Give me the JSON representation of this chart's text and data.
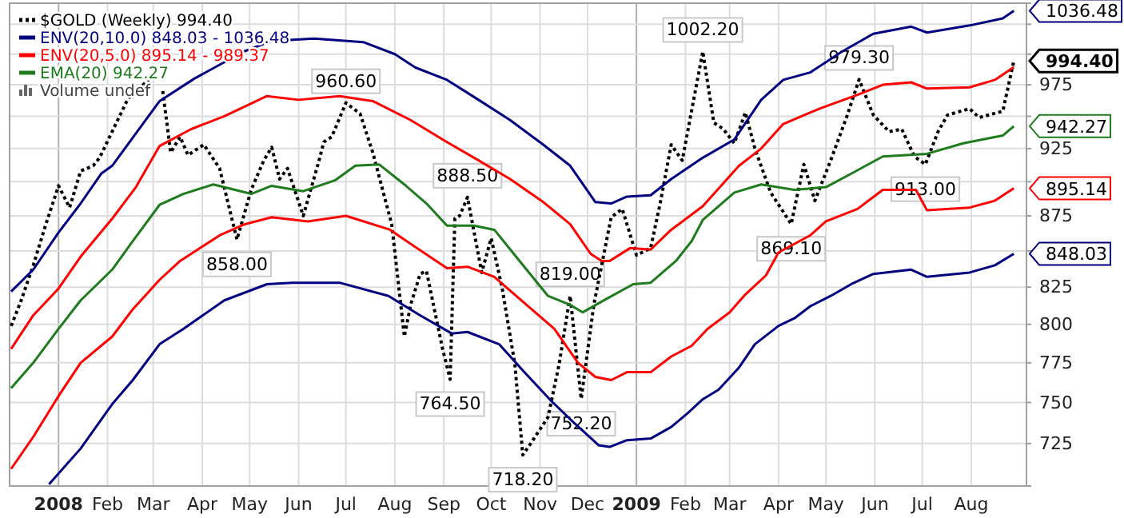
{
  "chart_data": {
    "type": "line",
    "legend": "top left",
    "grid": true,
    "log": true,
    "xlim": [
      "2007-12-01",
      "2009-09-05"
    ],
    "xticks": [
      {
        "value": "2008-01-01",
        "label": "2008"
      },
      {
        "value": "2008-02-01",
        "label": "Feb"
      },
      {
        "value": "2008-03-01",
        "label": "Mar"
      },
      {
        "value": "2008-04-01",
        "label": "Apr"
      },
      {
        "value": "2008-05-01",
        "label": "May"
      },
      {
        "value": "2008-06-01",
        "label": "Jun"
      },
      {
        "value": "2008-07-01",
        "label": "Jul"
      },
      {
        "value": "2008-08-01",
        "label": "Aug"
      },
      {
        "value": "2008-09-01",
        "label": "Sep"
      },
      {
        "value": "2008-10-01",
        "label": "Oct"
      },
      {
        "value": "2008-11-01",
        "label": "Nov"
      },
      {
        "value": "2008-12-01",
        "label": "Dec"
      },
      {
        "value": "2009-01-01",
        "label": "2009"
      },
      {
        "value": "2009-02-01",
        "label": "Feb"
      },
      {
        "value": "2009-03-01",
        "label": "Mar"
      },
      {
        "value": "2009-04-01",
        "label": "Apr"
      },
      {
        "value": "2009-05-01",
        "label": "May"
      },
      {
        "value": "2009-06-01",
        "label": "Jun"
      },
      {
        "value": "2009-07-01",
        "label": "Jul"
      },
      {
        "value": "2009-08-01",
        "label": "Aug"
      }
    ],
    "ylim": [
      700,
      1043
    ],
    "yticks": [
      725,
      750,
      775,
      800,
      825,
      {
        "value": 850,
        "label": null
      },
      875,
      {
        "value": 900,
        "label": null
      },
      925,
      {
        "value": 950,
        "label": null
      },
      975,
      {
        "value": 1000,
        "label": null
      },
      {
        "value": 1025,
        "label": null
      }
    ],
    "series": [
      {
        "name": "$GOLD (Weekly) 994.40",
        "color": "#000000",
        "line_style": "dotted",
        "x": [
          "2007-12-02",
          "2007-12-08",
          "2007-12-16",
          "2007-12-24",
          "2008-01-01",
          "2008-01-08",
          "2008-01-15",
          "2008-01-23",
          "2008-01-27",
          "2008-02-14",
          "2008-02-27",
          "2008-03-02",
          "2008-03-07",
          "2008-03-12",
          "2008-03-18",
          "2008-03-23",
          "2008-04-02",
          "2008-04-12",
          "2008-04-23",
          "2008-05-02",
          "2008-05-10",
          "2008-05-15",
          "2008-05-20",
          "2008-05-25",
          "2008-06-04",
          "2008-06-14",
          "2008-06-17",
          "2008-06-22",
          "2008-07-01",
          "2008-07-10",
          "2008-07-18",
          "2008-07-30",
          "2008-08-07",
          "2008-08-11",
          "2008-08-17",
          "2008-08-21",
          "2008-08-31",
          "2008-09-05",
          "2008-09-08",
          "2008-09-11",
          "2008-09-16",
          "2008-09-25",
          "2008-10-01",
          "2008-10-08",
          "2008-10-16",
          "2008-10-21",
          "2008-10-26",
          "2008-11-06",
          "2008-11-13",
          "2008-11-20",
          "2008-11-27",
          "2008-12-05",
          "2008-12-13",
          "2008-12-16",
          "2008-12-23",
          "2009-01-01",
          "2009-01-10",
          "2009-01-16",
          "2009-01-23",
          "2009-01-30",
          "2009-02-12",
          "2009-02-19",
          "2009-02-25",
          "2009-03-04",
          "2009-03-11",
          "2009-03-17",
          "2009-03-27",
          "2009-04-09",
          "2009-04-17",
          "2009-04-24",
          "2009-05-04",
          "2009-05-14",
          "2009-05-22",
          "2009-05-31",
          "2009-06-10",
          "2009-06-18",
          "2009-06-26",
          "2009-07-03",
          "2009-07-11",
          "2009-07-17",
          "2009-07-31",
          "2009-08-06",
          "2009-08-21",
          "2009-08-28"
        ],
        "values": [
          799,
          815,
          840,
          869,
          897,
          881,
          908,
          912,
          918,
          964,
          979,
          null,
          970,
          922,
          934,
          920,
          928,
          910,
          858,
          894,
          916,
          926,
          902,
          910,
          875,
          916,
          930,
          934,
          960.6,
          952,
          922,
          869,
          792,
          813,
          834,
          836,
          785,
          764.5,
          873,
          875,
          888.5,
          835,
          859,
          824,
          774,
          718.2,
          725,
          741,
          774,
          819,
          752.2,
          813,
          857,
          874,
          880,
          847,
          852,
          884,
          928,
          916,
          1002.2,
          945,
          940,
          929,
          953,
          925,
          892,
          869.1,
          913,
          886,
          916,
          949,
          979.3,
          951,
          938,
          940,
          919,
          913,
          938,
          951,
          956,
          949,
          954,
          994.4
        ]
      },
      {
        "name": "ENV(20,10.0) 848.03 - 1036.48",
        "color": "#000080",
        "x": [
          "2007-12-02",
          "2007-12-16",
          "2008-01-01",
          "2008-01-15",
          "2008-01-28",
          "2008-02-04",
          "2008-03-05",
          "2008-03-27",
          "2008-04-27",
          "2008-05-15",
          "2008-06-11",
          "2008-07-12",
          "2008-08-01",
          "2008-08-14",
          "2008-09-03",
          "2008-09-23",
          "2008-10-13",
          "2008-11-03",
          "2008-11-20",
          "2008-12-06",
          "2008-12-16",
          "2008-12-26",
          "2009-01-10",
          "2009-01-23",
          "2009-02-12",
          "2009-03-04",
          "2009-03-21",
          "2009-04-04",
          "2009-04-21",
          "2009-05-11",
          "2009-05-31",
          "2009-06-24",
          "2009-07-04",
          "2009-07-31",
          "2009-08-21",
          "2009-08-28"
        ],
        "values": [
          822,
          837,
          863,
          884,
          906,
          912,
          962,
          980,
          1002,
          1011,
          1013,
          1010,
          1000,
          989,
          979,
          963,
          947,
          928,
          912,
          885,
          884,
          889,
          890,
          902,
          918,
          932,
          963,
          979,
          985,
          1002,
          1017,
          1023,
          1018,
          1024,
          1030,
          1036.48
        ]
      },
      {
        "color": "#000080",
        "x": [
          "2007-12-26",
          "2008-01-15",
          "2008-02-04",
          "2008-02-17",
          "2008-03-05",
          "2008-03-20",
          "2008-04-15",
          "2008-05-12",
          "2008-05-28",
          "2008-06-27",
          "2008-07-28",
          "2008-08-17",
          "2008-09-06",
          "2008-09-16",
          "2008-10-06",
          "2008-10-22",
          "2008-11-08",
          "2008-11-23",
          "2008-12-08",
          "2008-12-15",
          "2008-12-26",
          "2009-01-10",
          "2009-01-23",
          "2009-02-02",
          "2009-02-12",
          "2009-02-22",
          "2009-03-07",
          "2009-03-17",
          "2009-04-01",
          "2009-04-11",
          "2009-04-21",
          "2009-05-04",
          "2009-05-17",
          "2009-05-31",
          "2009-06-24",
          "2009-07-04",
          "2009-07-31",
          "2009-08-16",
          "2009-08-28"
        ],
        "values": [
          701,
          722,
          749,
          764,
          787,
          797,
          816,
          827,
          828,
          828,
          819,
          806,
          794,
          795,
          787,
          769,
          751,
          737,
          724,
          723,
          727,
          728,
          735,
          743,
          752,
          758,
          772,
          787,
          799,
          804,
          812,
          819,
          827,
          834,
          837,
          832,
          835,
          840,
          848.03
        ]
      },
      {
        "name": "ENV(20,5.0) 895.14 - 989.37",
        "color": "#ff0000",
        "x": [
          "2007-12-02",
          "2007-12-16",
          "2008-01-01",
          "2008-01-15",
          "2008-02-04",
          "2008-02-19",
          "2008-03-05",
          "2008-03-25",
          "2008-04-15",
          "2008-05-12",
          "2008-06-01",
          "2008-06-27",
          "2008-07-18",
          "2008-08-11",
          "2008-09-03",
          "2008-09-23",
          "2008-10-13",
          "2008-11-03",
          "2008-11-20",
          "2008-12-03",
          "2008-12-10",
          "2008-12-15",
          "2008-12-28",
          "2009-01-10",
          "2009-01-23",
          "2009-02-12",
          "2009-03-07",
          "2009-03-21",
          "2009-04-04",
          "2009-04-27",
          "2009-05-21",
          "2009-06-06",
          "2009-06-24",
          "2009-07-04",
          "2009-07-31",
          "2009-08-16",
          "2009-08-28"
        ],
        "values": [
          784,
          806,
          824,
          846,
          873,
          896,
          927,
          940,
          950,
          966,
          963,
          966,
          962,
          947,
          930,
          916,
          902,
          885,
          869,
          848,
          843,
          843,
          852,
          851,
          865,
          882,
          912,
          925,
          944,
          956,
          967,
          975,
          977,
          972,
          973,
          979,
          989.37
        ]
      },
      {
        "color": "#ff0000",
        "x": [
          "2007-12-02",
          "2007-12-16",
          "2008-01-01",
          "2008-01-15",
          "2008-02-04",
          "2008-02-17",
          "2008-03-05",
          "2008-03-18",
          "2008-04-12",
          "2008-04-28",
          "2008-05-15",
          "2008-06-07",
          "2008-07-01",
          "2008-07-29",
          "2008-08-07",
          "2008-09-03",
          "2008-09-16",
          "2008-10-03",
          "2008-10-19",
          "2008-11-10",
          "2008-11-25",
          "2008-12-06",
          "2008-12-16",
          "2008-12-26",
          "2009-01-10",
          "2009-01-23",
          "2009-02-05",
          "2009-02-15",
          "2009-03-01",
          "2009-03-11",
          "2009-03-24",
          "2009-04-01",
          "2009-04-21",
          "2009-05-01",
          "2009-05-21",
          "2009-06-06",
          "2009-06-27",
          "2009-07-04",
          "2009-07-31",
          "2009-08-16",
          "2009-08-28"
        ],
        "values": [
          710,
          729,
          754,
          775,
          792,
          810,
          830,
          843,
          861,
          869,
          874,
          871,
          875,
          865,
          858,
          838,
          839,
          832,
          817,
          797,
          775,
          766,
          764,
          769,
          769,
          779,
          786,
          797,
          808,
          820,
          833,
          849,
          861,
          871,
          880,
          894,
          894,
          879,
          881,
          886,
          895.14
        ]
      },
      {
        "name": "EMA(20) 942.27",
        "color": "#1e7b1e",
        "x": [
          "2007-12-02",
          "2007-12-16",
          "2008-01-01",
          "2008-01-15",
          "2008-02-04",
          "2008-02-17",
          "2008-03-05",
          "2008-03-20",
          "2008-04-08",
          "2008-05-02",
          "2008-05-15",
          "2008-06-04",
          "2008-06-24",
          "2008-07-07",
          "2008-07-22",
          "2008-08-07",
          "2008-08-21",
          "2008-09-03",
          "2008-09-20",
          "2008-10-03",
          "2008-10-16",
          "2008-11-06",
          "2008-11-20",
          "2008-11-28",
          "2008-12-13",
          "2008-12-30",
          "2009-01-10",
          "2009-01-26",
          "2009-02-05",
          "2009-02-12",
          "2009-03-04",
          "2009-03-21",
          "2009-04-11",
          "2009-05-01",
          "2009-05-17",
          "2009-06-06",
          "2009-07-04",
          "2009-07-27",
          "2009-08-21",
          "2009-08-28"
        ],
        "values": [
          759,
          775,
          797,
          816,
          837,
          857,
          883,
          891,
          898,
          891,
          897,
          893,
          901,
          912,
          913,
          898,
          884,
          868,
          868,
          865,
          847,
          819,
          813,
          808,
          817,
          827,
          828,
          843,
          857,
          872,
          892,
          898,
          894,
          896,
          906,
          919,
          921,
          929,
          935,
          942.27
        ]
      }
    ],
    "annotations": [
      {
        "text": "858.00",
        "x": "2008-04-23",
        "y": 858
      },
      {
        "text": "960.60",
        "x": "2008-07-01",
        "y": 960.6
      },
      {
        "text": "764.50",
        "x": "2008-09-05",
        "y": 764.5
      },
      {
        "text": "888.50",
        "x": "2008-09-16",
        "y": 888.5
      },
      {
        "text": "718.20",
        "x": "2008-10-21",
        "y": 718.2
      },
      {
        "text": "819.00",
        "x": "2008-11-20",
        "y": 819
      },
      {
        "text": "752.20",
        "x": "2008-11-27",
        "y": 752.2
      },
      {
        "text": "1002.20",
        "x": "2009-02-12",
        "y": 1002.2
      },
      {
        "text": "869.10",
        "x": "2009-04-09",
        "y": 869.1
      },
      {
        "text": "979.30",
        "x": "2009-05-22",
        "y": 979.3
      },
      {
        "text": "913.00",
        "x": "2009-07-03",
        "y": 913
      },
      {
        "text": "1036.48",
        "x": "2009-08-28",
        "y": 1036.48
      },
      {
        "text": "994.40",
        "x": "2009-08-28",
        "y": 994.4
      },
      {
        "text": "942.27",
        "x": "2009-08-28",
        "y": 942.27
      },
      {
        "text": "895.14",
        "x": "2009-08-28",
        "y": 895.14
      },
      {
        "text": "848.03",
        "x": "2009-08-28",
        "y": 848.03
      },
      "Volume undef"
    ]
  }
}
